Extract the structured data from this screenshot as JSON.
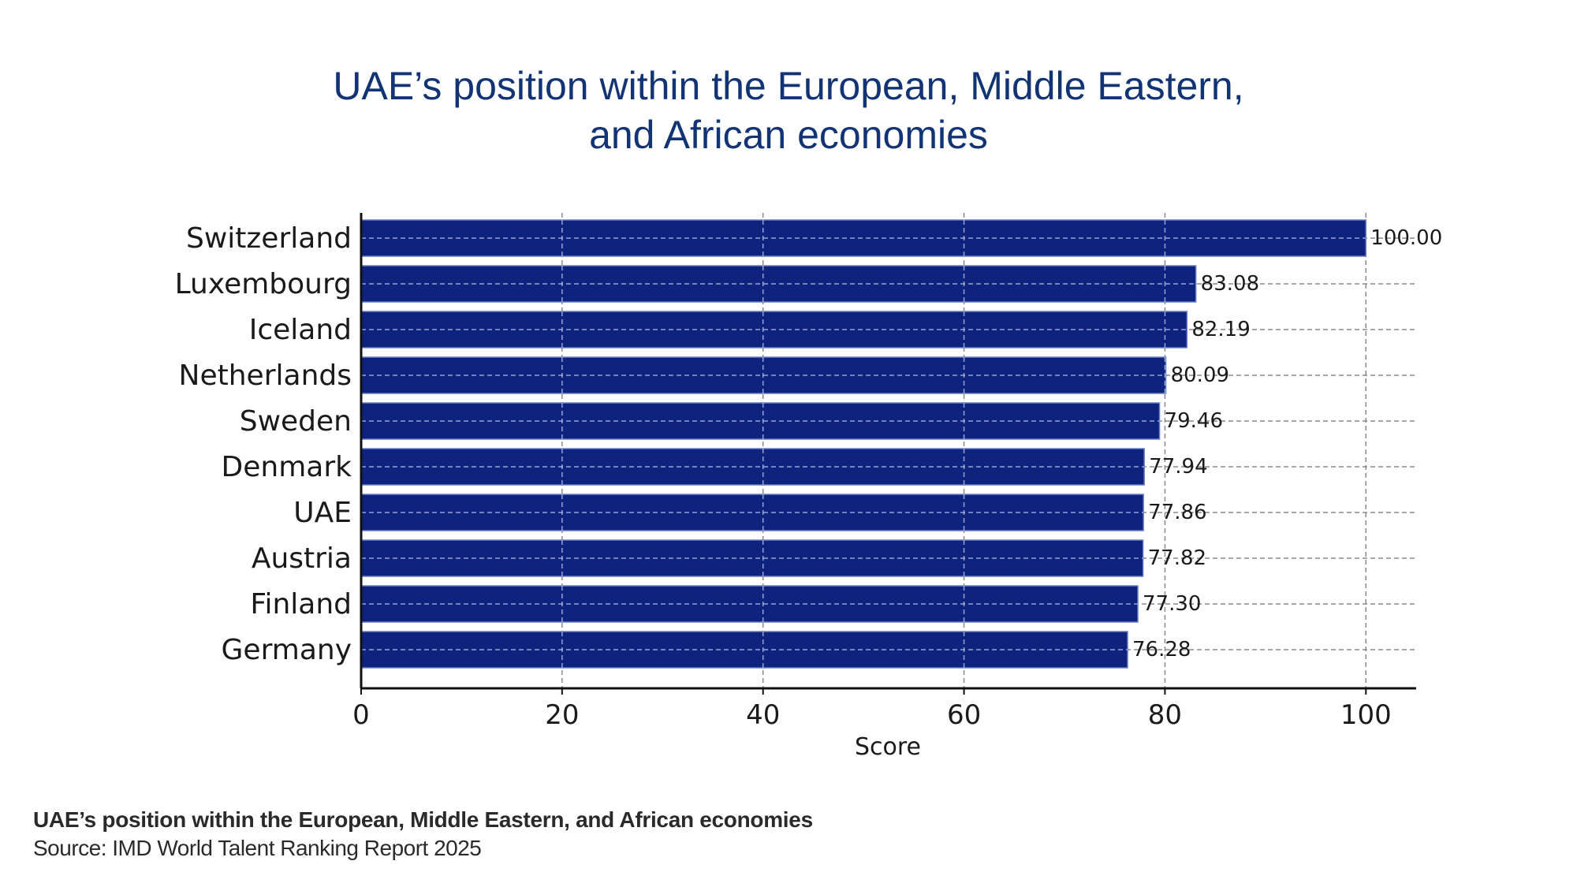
{
  "chart_data": {
    "type": "bar",
    "orientation": "horizontal",
    "title_lines": [
      "UAE’s position within the European, Middle Eastern,",
      "and African economies"
    ],
    "categories": [
      "Switzerland",
      "Luxembourg",
      "Iceland",
      "Netherlands",
      "Sweden",
      "Denmark",
      "UAE",
      "Austria",
      "Finland",
      "Germany"
    ],
    "values": [
      100.0,
      83.08,
      82.19,
      80.09,
      79.46,
      77.94,
      77.86,
      77.82,
      77.3,
      76.28
    ],
    "value_labels": [
      "100.00",
      "83.08",
      "82.19",
      "80.09",
      "79.46",
      "77.94",
      "77.86",
      "77.82",
      "77.30",
      "76.28"
    ],
    "xlabel": "Score",
    "ylabel": "",
    "xlim": [
      0,
      105
    ],
    "xticks": [
      "0",
      "20",
      "40",
      "60",
      "80",
      "100"
    ],
    "grid": true,
    "bar_color": "#0d237e",
    "title_color": "#123474"
  },
  "caption": {
    "title": "UAE’s position within the European, Middle Eastern, and African economies",
    "source": "Source: IMD World Talent Ranking Report 2025"
  }
}
